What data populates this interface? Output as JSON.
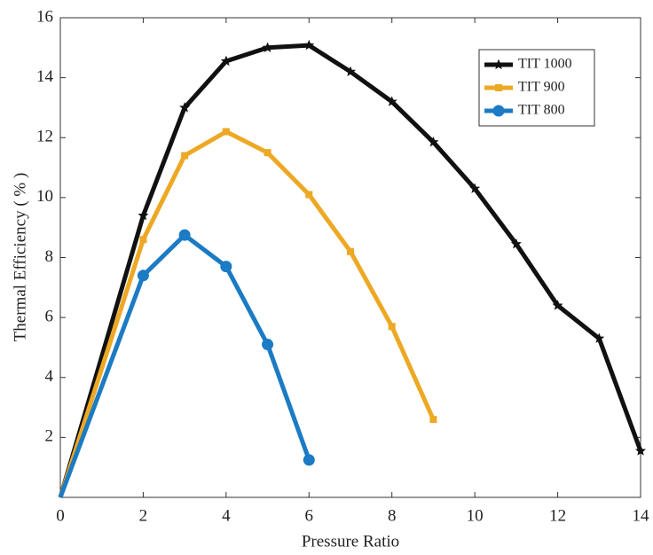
{
  "chart_data": {
    "type": "line",
    "x_label": "Pressure Ratio",
    "y_label": "Thermal Efficiency ( % )",
    "xlim": [
      0,
      14
    ],
    "xticks": [
      0,
      2,
      4,
      6,
      8,
      10,
      12,
      14
    ],
    "ylim": [
      0,
      16
    ],
    "yticks": [
      2,
      4,
      6,
      8,
      10,
      12,
      14,
      16
    ],
    "legend_position": "upper-right",
    "series": [
      {
        "name": "TIT 1000",
        "color": "#111111",
        "marker": "star",
        "x": [
          0,
          2,
          3,
          4,
          5,
          6,
          7,
          8,
          9,
          10,
          11,
          12,
          13,
          14
        ],
        "values": [
          0,
          9.4,
          13.0,
          14.55,
          15.0,
          15.08,
          14.2,
          13.2,
          11.85,
          10.3,
          8.45,
          6.4,
          5.3,
          1.55
        ]
      },
      {
        "name": "TIT 900",
        "color": "#EDA824",
        "marker": "square",
        "x": [
          0,
          2,
          3,
          4,
          5,
          6,
          7,
          8,
          9
        ],
        "values": [
          0,
          8.6,
          11.4,
          12.2,
          11.5,
          10.1,
          8.2,
          5.7,
          2.6
        ]
      },
      {
        "name": "TIT 800",
        "color": "#1B7BC4",
        "marker": "circle",
        "x": [
          0,
          2,
          3,
          4,
          5,
          6
        ],
        "values": [
          0,
          7.4,
          8.75,
          7.7,
          5.1,
          1.25
        ]
      }
    ]
  }
}
